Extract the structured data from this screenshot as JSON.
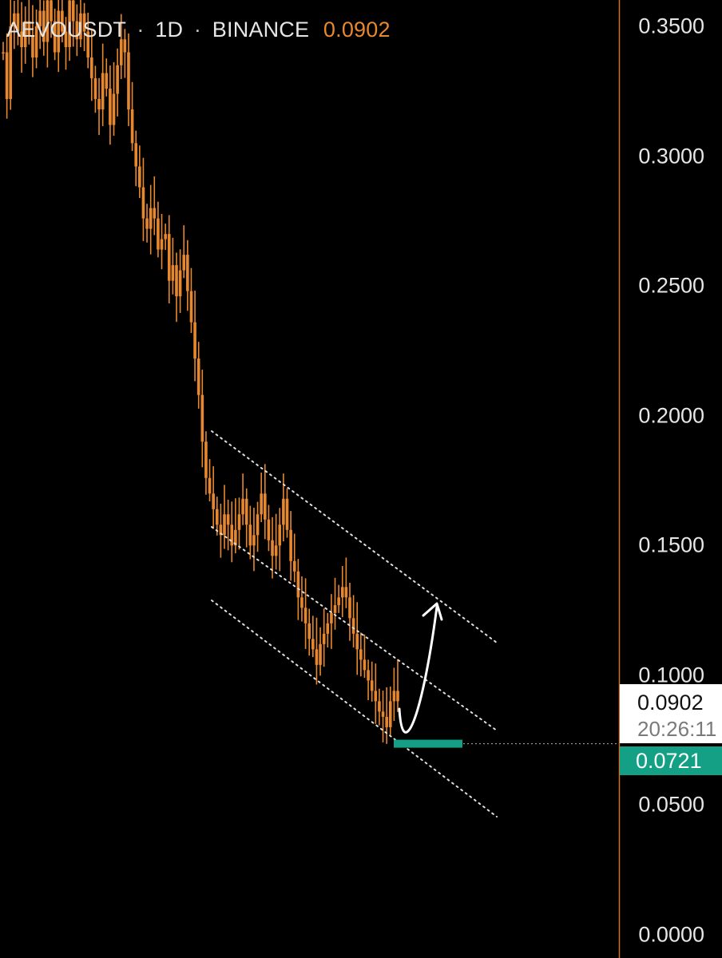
{
  "header": {
    "symbol": "AEVOUSDT",
    "separator": "·",
    "interval": "1D",
    "exchange": "BINANCE",
    "last_price": "0.0902"
  },
  "price_axis": {
    "ticks": [
      "0.3500",
      "0.3000",
      "0.2500",
      "0.2000",
      "0.1500",
      "0.1000",
      "0.0500",
      "0.0000"
    ]
  },
  "current_price": {
    "value": "0.0902",
    "countdown": "20:26:11"
  },
  "support_level": {
    "value": "0.0721"
  },
  "colors": {
    "background": "#000000",
    "candle": "#e8882e",
    "axis_border": "#d0702a",
    "support": "#13a085",
    "text": "#e6e6e6"
  },
  "chart_data": {
    "type": "line",
    "title": "AEVOUSDT · 1D · BINANCE",
    "ylim": [
      0,
      0.35
    ],
    "y_ticks": [
      0.35,
      0.3,
      0.25,
      0.2,
      0.15,
      0.1,
      0.05,
      0.0
    ],
    "series": [
      {
        "values": [
          0.34,
          0.322,
          0.35,
          0.355,
          0.348,
          0.342,
          0.352,
          0.346,
          0.338,
          0.35,
          0.356,
          0.344,
          0.36,
          0.352,
          0.34,
          0.356,
          0.348,
          0.342,
          0.36,
          0.352,
          0.345,
          0.355,
          0.348,
          0.338,
          0.33,
          0.322,
          0.318,
          0.332,
          0.326,
          0.312,
          0.324,
          0.335,
          0.345,
          0.34,
          0.318,
          0.305,
          0.296,
          0.288,
          0.276,
          0.272,
          0.28,
          0.276,
          0.264,
          0.268,
          0.27,
          0.252,
          0.258,
          0.246,
          0.256,
          0.262,
          0.248,
          0.236,
          0.222,
          0.208,
          0.19,
          0.176,
          0.17,
          0.164,
          0.158,
          0.154,
          0.162,
          0.158,
          0.15,
          0.156,
          0.162,
          0.168,
          0.158,
          0.15,
          0.154,
          0.162,
          0.17,
          0.16,
          0.152,
          0.146,
          0.15,
          0.158,
          0.168,
          0.156,
          0.144,
          0.14,
          0.13,
          0.126,
          0.12,
          0.114,
          0.11,
          0.104,
          0.112,
          0.116,
          0.12,
          0.124,
          0.127,
          0.13,
          0.134,
          0.13,
          0.122,
          0.116,
          0.11,
          0.106,
          0.102,
          0.098,
          0.094,
          0.09,
          0.086,
          0.084,
          0.08,
          0.09,
          0.094,
          0.09
        ],
        "color": "#e8882e"
      }
    ],
    "current_price": 0.0902,
    "support_level": 0.0721,
    "annotations": [
      "descending channel (3 dotted parallel lines)",
      "curved up arrow projecting rebound",
      "green support bar at 0.0721"
    ],
    "grid": false,
    "legend": "none"
  }
}
